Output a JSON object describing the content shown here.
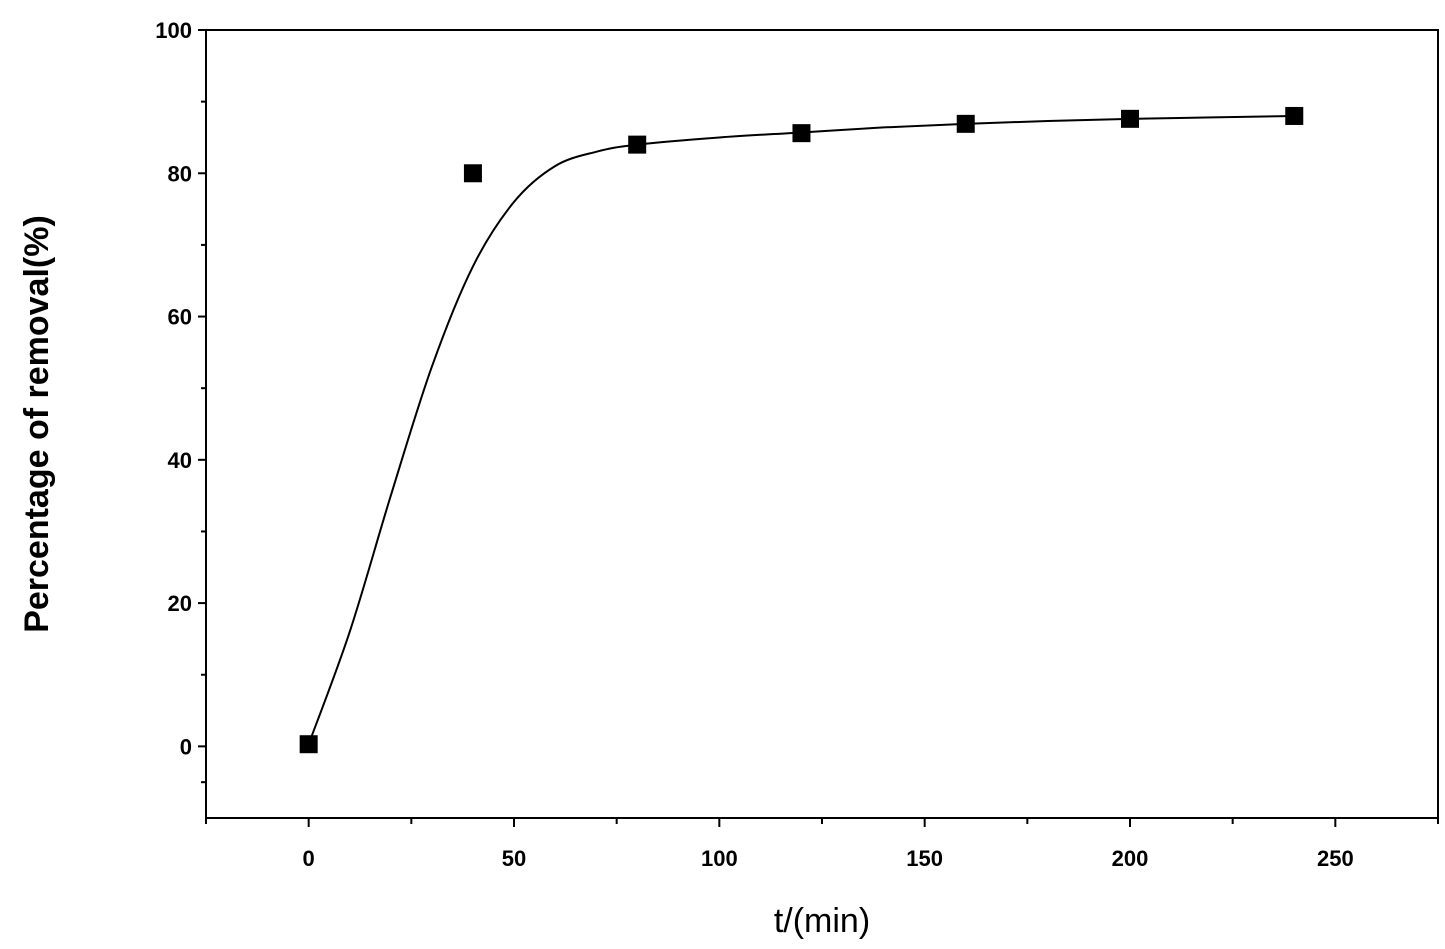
{
  "chart_data": {
    "type": "scatter",
    "title": "",
    "xlabel": "t/(min)",
    "ylabel": "Percentage of removal(%)",
    "xlim": [
      -25,
      275
    ],
    "ylim": [
      -10,
      100
    ],
    "x_ticks": [
      0,
      50,
      100,
      150,
      200,
      250
    ],
    "y_ticks": [
      0,
      20,
      40,
      60,
      80,
      100
    ],
    "grid": false,
    "legend": "none",
    "series": [
      {
        "marker": "square",
        "color": "#000000",
        "x": [
          0,
          40,
          80,
          120,
          160,
          200,
          240
        ],
        "y": [
          0.3,
          80,
          84,
          85.6,
          86.9,
          87.6,
          88
        ]
      }
    ],
    "fit_curve": {
      "color": "#000000",
      "x": [
        0,
        10,
        20,
        30,
        40,
        50,
        60,
        70,
        80,
        100,
        120,
        140,
        160,
        180,
        200,
        220,
        240
      ],
      "y": [
        0.3,
        16,
        35,
        53,
        67,
        76,
        81,
        83,
        84,
        85,
        85.7,
        86.4,
        86.9,
        87.3,
        87.6,
        87.8,
        88
      ]
    }
  }
}
